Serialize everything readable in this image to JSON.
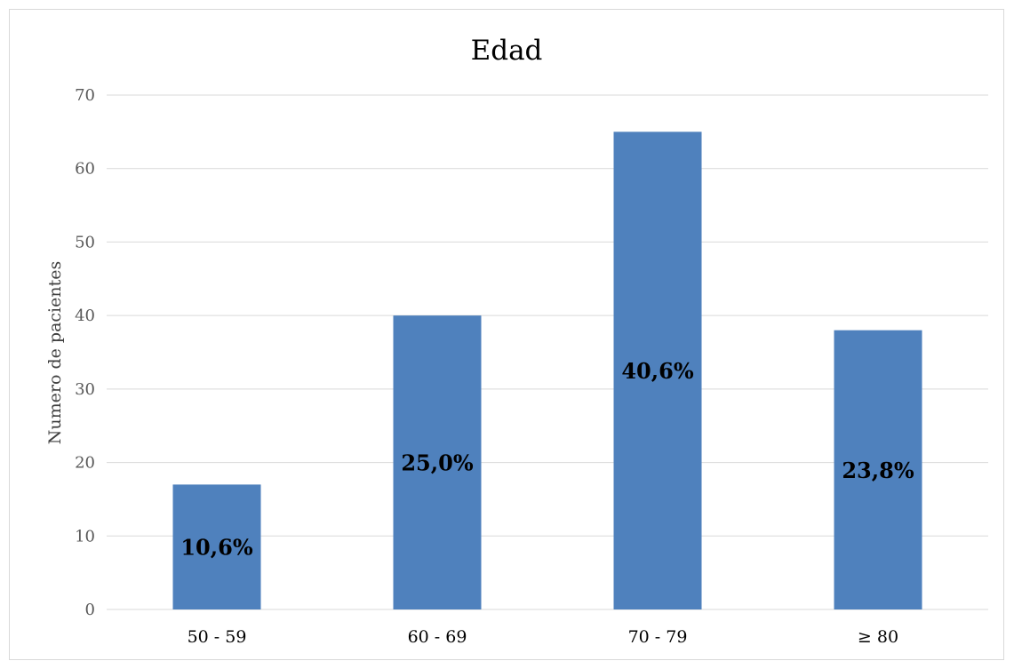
{
  "chart_data": {
    "type": "bar",
    "title": "Edad",
    "xlabel": "",
    "ylabel": "Numero de pacientes",
    "categories": [
      "50 - 59",
      "60 - 69",
      "70 - 79",
      "≥ 80"
    ],
    "values": [
      17,
      40,
      65,
      38
    ],
    "data_labels": [
      "10,6%",
      "25,0%",
      "40,6%",
      "23,8%"
    ],
    "ylim": [
      0,
      70
    ],
    "yticks": [
      0,
      10,
      20,
      30,
      40,
      50,
      60,
      70
    ],
    "grid": true,
    "legend": "none",
    "colors": {
      "bar": "#4f81bd",
      "grid": "#d9d9d9"
    }
  }
}
